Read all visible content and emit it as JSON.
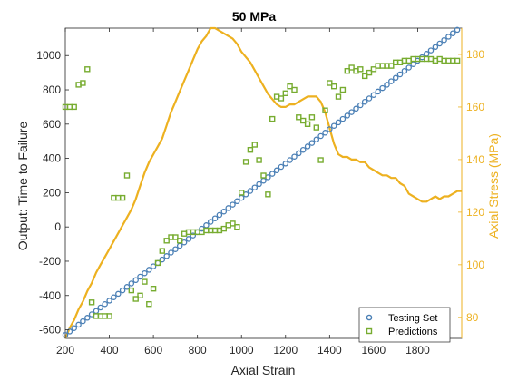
{
  "chart_data": {
    "type": "scatter",
    "title": "50 MPa",
    "xlabel": "Axial Strain",
    "ylabel_left": "Output: Time to Failure",
    "ylabel_right": "Axial Stress (MPa)",
    "xlim": [
      200,
      2000
    ],
    "ylim_left": [
      -650,
      1160
    ],
    "ylim_right": [
      72,
      190
    ],
    "x_ticks": [
      200,
      400,
      600,
      800,
      1000,
      1200,
      1400,
      1600,
      1800
    ],
    "y_ticks_left": [
      -600,
      -400,
      -200,
      0,
      200,
      400,
      600,
      800,
      1000
    ],
    "y_ticks_right": [
      80,
      100,
      120,
      140,
      160,
      180
    ],
    "grid": false,
    "legend_position": "bottom-right",
    "colors": {
      "testing": "#4A7FB5",
      "predictions": "#77AC30",
      "stress": "#EDB120",
      "axis": "#262626"
    },
    "series": [
      {
        "name": "Testing Set",
        "marker": "circle",
        "axis": "left",
        "x": [
          200,
          220,
          240,
          260,
          280,
          300,
          320,
          340,
          360,
          380,
          400,
          420,
          440,
          460,
          480,
          500,
          520,
          540,
          560,
          580,
          600,
          620,
          640,
          660,
          680,
          700,
          720,
          740,
          760,
          780,
          800,
          820,
          840,
          860,
          880,
          900,
          920,
          940,
          960,
          980,
          1000,
          1020,
          1040,
          1060,
          1080,
          1100,
          1120,
          1140,
          1160,
          1180,
          1200,
          1220,
          1240,
          1260,
          1280,
          1300,
          1320,
          1340,
          1360,
          1380,
          1400,
          1420,
          1440,
          1460,
          1480,
          1500,
          1520,
          1540,
          1560,
          1580,
          1600,
          1620,
          1640,
          1660,
          1680,
          1700,
          1720,
          1740,
          1760,
          1780,
          1800,
          1820,
          1840,
          1860,
          1880,
          1900,
          1920,
          1940,
          1960,
          1980
        ],
        "y": [
          -630,
          -610,
          -590,
          -570,
          -550,
          -530,
          -510,
          -490,
          -470,
          -450,
          -430,
          -410,
          -390,
          -370,
          -350,
          -330,
          -310,
          -290,
          -270,
          -250,
          -230,
          -210,
          -190,
          -170,
          -150,
          -130,
          -110,
          -90,
          -70,
          -50,
          -30,
          -10,
          10,
          30,
          50,
          70,
          90,
          110,
          130,
          150,
          170,
          190,
          210,
          230,
          250,
          270,
          290,
          310,
          330,
          350,
          370,
          390,
          410,
          430,
          450,
          470,
          490,
          510,
          530,
          550,
          570,
          590,
          610,
          630,
          650,
          670,
          690,
          710,
          730,
          750,
          770,
          790,
          810,
          830,
          850,
          870,
          890,
          910,
          930,
          950,
          970,
          990,
          1010,
          1030,
          1050,
          1070,
          1090,
          1110,
          1130,
          1150
        ]
      },
      {
        "name": "Predictions",
        "marker": "square",
        "axis": "left",
        "x": [
          200,
          220,
          240,
          260,
          280,
          300,
          320,
          340,
          360,
          380,
          400,
          420,
          440,
          460,
          480,
          500,
          520,
          540,
          560,
          580,
          600,
          620,
          640,
          660,
          680,
          700,
          720,
          740,
          760,
          780,
          800,
          820,
          840,
          860,
          880,
          900,
          920,
          940,
          960,
          980,
          1000,
          1020,
          1040,
          1060,
          1080,
          1100,
          1120,
          1140,
          1160,
          1180,
          1200,
          1220,
          1240,
          1260,
          1280,
          1300,
          1320,
          1340,
          1360,
          1380,
          1400,
          1420,
          1440,
          1460,
          1480,
          1500,
          1520,
          1540,
          1560,
          1580,
          1600,
          1620,
          1640,
          1660,
          1680,
          1700,
          1720,
          1740,
          1760,
          1780,
          1800,
          1820,
          1840,
          1860,
          1880,
          1900,
          1920,
          1940,
          1960,
          1980
        ],
        "y": [
          700,
          700,
          700,
          830,
          840,
          920,
          -440,
          -520,
          -520,
          -520,
          -520,
          170,
          170,
          170,
          300,
          -370,
          -420,
          -400,
          -320,
          -450,
          -360,
          -210,
          -140,
          -80,
          -60,
          -60,
          -80,
          -40,
          -30,
          -30,
          -30,
          -30,
          -20,
          -20,
          -20,
          -20,
          -10,
          10,
          20,
          0,
          200,
          380,
          450,
          480,
          390,
          300,
          190,
          630,
          760,
          750,
          780,
          820,
          800,
          640,
          620,
          600,
          640,
          580,
          390,
          680,
          840,
          820,
          760,
          800,
          910,
          930,
          910,
          920,
          880,
          900,
          920,
          940,
          940,
          940,
          940,
          960,
          960,
          970,
          970,
          980,
          980,
          980,
          980,
          980,
          970,
          980,
          970,
          970,
          970,
          970
        ]
      },
      {
        "name": "",
        "type": "line",
        "axis": "right",
        "x": [
          200,
          220,
          240,
          260,
          280,
          300,
          320,
          340,
          360,
          380,
          400,
          420,
          440,
          460,
          480,
          500,
          520,
          540,
          560,
          580,
          600,
          620,
          640,
          660,
          680,
          700,
          720,
          740,
          760,
          780,
          800,
          820,
          840,
          860,
          880,
          900,
          920,
          940,
          960,
          980,
          1000,
          1020,
          1040,
          1060,
          1080,
          1100,
          1120,
          1140,
          1160,
          1180,
          1200,
          1220,
          1240,
          1260,
          1280,
          1300,
          1320,
          1340,
          1360,
          1380,
          1400,
          1420,
          1440,
          1460,
          1480,
          1500,
          1520,
          1540,
          1560,
          1580,
          1600,
          1620,
          1640,
          1660,
          1680,
          1700,
          1720,
          1740,
          1760,
          1780,
          1800,
          1820,
          1840,
          1860,
          1880,
          1900,
          1920,
          1940,
          1960,
          1980,
          2000
        ],
        "y": [
          72,
          76,
          79,
          83,
          86,
          90,
          93,
          97,
          100,
          103,
          106,
          109,
          112,
          115,
          118,
          121,
          125,
          130,
          135,
          139,
          142,
          145,
          148,
          153,
          158,
          162,
          166,
          170,
          174,
          178,
          182,
          185,
          187,
          190,
          190,
          189,
          188,
          187,
          186,
          184,
          181,
          179,
          177,
          174,
          171,
          168,
          165,
          163,
          161,
          160,
          160,
          161,
          161,
          162,
          163,
          164,
          164,
          164,
          162,
          158,
          152,
          146,
          142,
          141,
          141,
          140,
          140,
          139,
          139,
          137,
          136,
          135,
          134,
          134,
          133,
          133,
          131,
          130,
          127,
          126,
          125,
          124,
          124,
          125,
          126,
          125,
          126,
          126,
          127,
          128,
          128
        ]
      }
    ]
  }
}
